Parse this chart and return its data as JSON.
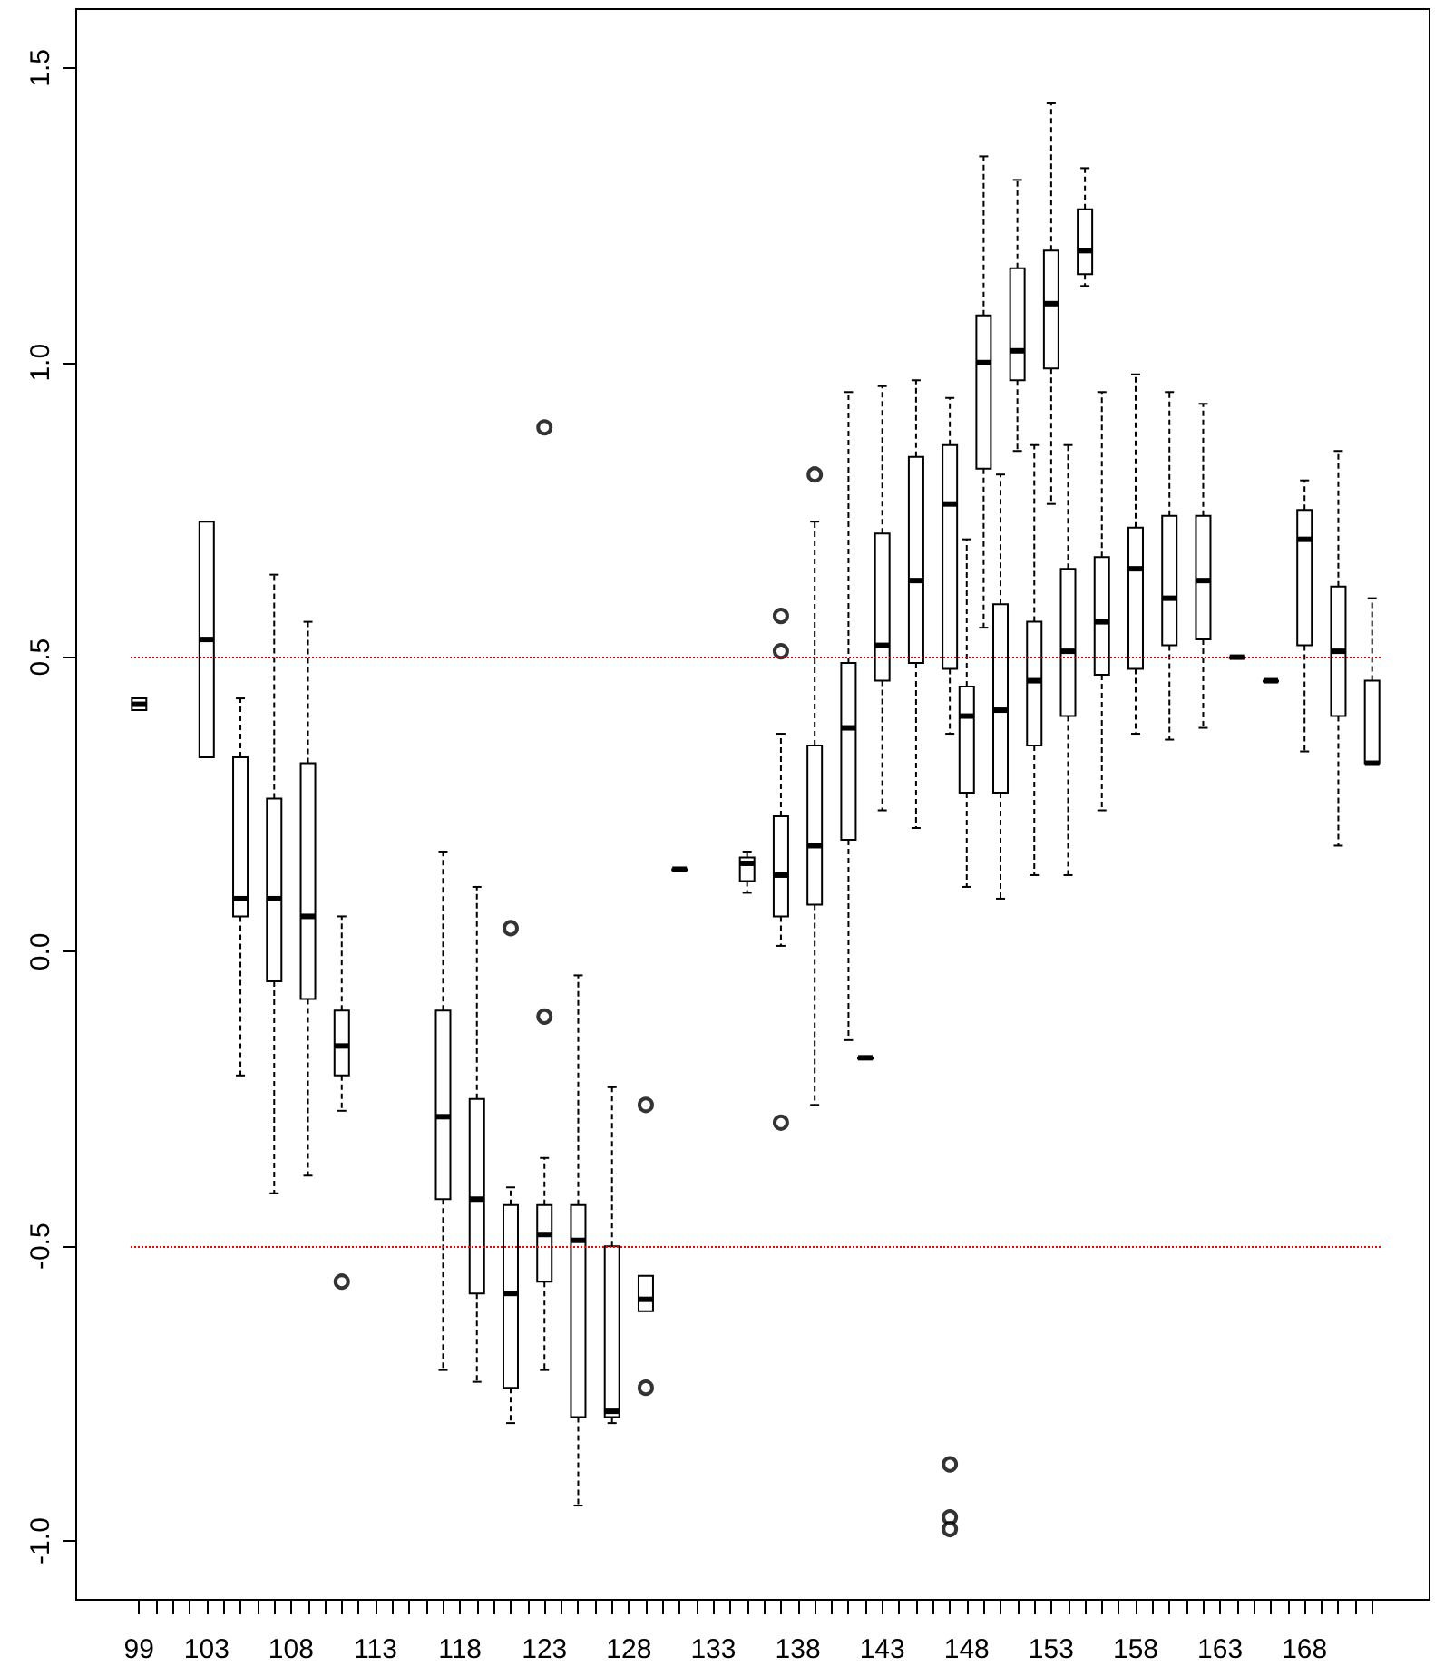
{
  "chart_data": {
    "type": "box",
    "categories": [
      "99",
      null,
      null,
      null,
      "103",
      null,
      null,
      null,
      null,
      "108",
      null,
      null,
      null,
      null,
      "113",
      null,
      null,
      null,
      null,
      "118",
      null,
      null,
      null,
      null,
      "123",
      null,
      null,
      null,
      null,
      "128",
      null,
      null,
      null,
      null,
      "133",
      null,
      null,
      null,
      null,
      "138",
      null,
      null,
      null,
      null,
      "143",
      null,
      null,
      null,
      null,
      "148",
      null,
      null,
      null,
      null,
      "153",
      null,
      null,
      null,
      null,
      "158",
      null,
      null,
      null,
      null,
      "163",
      null,
      null,
      null,
      null,
      "168",
      null,
      null,
      null,
      null
    ],
    "boxes": [
      {
        "low": 0.41,
        "q1": 0.41,
        "median": 0.42,
        "q3": 0.43,
        "high": 0.43
      },
      null,
      null,
      null,
      {
        "low": 0.33,
        "q1": 0.33,
        "median": 0.53,
        "q3": 0.73,
        "high": 0.73
      },
      null,
      {
        "low": -0.21,
        "q1": 0.06,
        "median": 0.09,
        "q3": 0.33,
        "high": 0.43
      },
      null,
      {
        "low": -0.41,
        "q1": -0.05,
        "median": 0.09,
        "q3": 0.26,
        "high": 0.64
      },
      null,
      {
        "low": -0.38,
        "q1": -0.08,
        "median": 0.06,
        "q3": 0.32,
        "high": 0.56
      },
      null,
      {
        "low": -0.27,
        "q1": -0.21,
        "median": -0.16,
        "q3": -0.1,
        "high": 0.06,
        "outliers": [
          -0.56
        ]
      },
      null,
      null,
      null,
      null,
      null,
      {
        "low": -0.71,
        "q1": -0.42,
        "median": -0.28,
        "q3": -0.1,
        "high": 0.17
      },
      null,
      {
        "low": -0.73,
        "q1": -0.58,
        "median": -0.42,
        "q3": -0.25,
        "high": 0.11
      },
      null,
      {
        "low": -0.8,
        "q1": -0.74,
        "median": -0.58,
        "q3": -0.43,
        "high": -0.4,
        "outliers": [
          0.04
        ]
      },
      null,
      {
        "low": -0.71,
        "q1": -0.56,
        "median": -0.48,
        "q3": -0.43,
        "high": -0.35,
        "outliers": [
          -0.11,
          0.89
        ]
      },
      null,
      {
        "low": -0.94,
        "q1": -0.79,
        "median": -0.49,
        "q3": -0.43,
        "high": -0.04
      },
      null,
      {
        "low": -0.8,
        "q1": -0.79,
        "median": -0.78,
        "q3": -0.5,
        "high": -0.23
      },
      null,
      {
        "low": -0.61,
        "q1": -0.61,
        "median": -0.59,
        "q3": -0.55,
        "high": -0.55,
        "outliers": [
          -0.26,
          -0.74
        ]
      },
      null,
      {
        "low": 0.14,
        "q1": 0.14,
        "median": 0.14,
        "q3": 0.14,
        "high": 0.14
      },
      null,
      null,
      null,
      {
        "low": 0.1,
        "q1": 0.12,
        "median": 0.15,
        "q3": 0.16,
        "high": 0.17
      },
      null,
      {
        "low": 0.01,
        "q1": 0.06,
        "median": 0.13,
        "q3": 0.23,
        "high": 0.37,
        "outliers": [
          0.57,
          0.51,
          -0.29
        ]
      },
      null,
      {
        "low": -0.26,
        "q1": 0.08,
        "median": 0.18,
        "q3": 0.35,
        "high": 0.73,
        "outliers": [
          0.81
        ]
      },
      null,
      {
        "low": -0.15,
        "q1": 0.19,
        "median": 0.38,
        "q3": 0.49,
        "high": 0.95
      },
      {
        "low": -0.18,
        "q1": -0.18,
        "median": -0.18,
        "q3": -0.18,
        "high": -0.18
      },
      {
        "low": 0.24,
        "q1": 0.46,
        "median": 0.52,
        "q3": 0.71,
        "high": 0.96
      },
      null,
      {
        "low": 0.21,
        "q1": 0.49,
        "median": 0.63,
        "q3": 0.84,
        "high": 0.97
      },
      null,
      {
        "low": 0.37,
        "q1": 0.48,
        "median": 0.76,
        "q3": 0.86,
        "high": 0.94,
        "outliers": [
          -0.87,
          -0.96,
          -0.98
        ]
      },
      {
        "low": 0.11,
        "q1": 0.27,
        "median": 0.4,
        "q3": 0.45,
        "high": 0.7
      },
      {
        "low": 0.55,
        "q1": 0.82,
        "median": 1.0,
        "q3": 1.08,
        "high": 1.35
      },
      {
        "low": 0.09,
        "q1": 0.27,
        "median": 0.41,
        "q3": 0.59,
        "high": 0.81
      },
      {
        "low": 0.85,
        "q1": 0.97,
        "median": 1.02,
        "q3": 1.16,
        "high": 1.31
      },
      {
        "low": 0.13,
        "q1": 0.35,
        "median": 0.46,
        "q3": 0.56,
        "high": 0.86
      },
      {
        "low": 0.76,
        "q1": 0.99,
        "median": 1.1,
        "q3": 1.19,
        "high": 1.44
      },
      {
        "low": 0.13,
        "q1": 0.4,
        "median": 0.51,
        "q3": 0.65,
        "high": 0.86
      },
      {
        "low": 1.13,
        "q1": 1.15,
        "median": 1.19,
        "q3": 1.26,
        "high": 1.33
      },
      {
        "low": 0.24,
        "q1": 0.47,
        "median": 0.56,
        "q3": 0.67,
        "high": 0.95
      },
      null,
      {
        "low": 0.37,
        "q1": 0.48,
        "median": 0.65,
        "q3": 0.72,
        "high": 0.98
      },
      null,
      {
        "low": 0.36,
        "q1": 0.52,
        "median": 0.6,
        "q3": 0.74,
        "high": 0.95
      },
      null,
      {
        "low": 0.38,
        "q1": 0.53,
        "median": 0.63,
        "q3": 0.74,
        "high": 0.93
      },
      null,
      {
        "low": 0.5,
        "q1": 0.5,
        "median": 0.5,
        "q3": 0.5,
        "high": 0.5
      },
      null,
      {
        "low": 0.46,
        "q1": 0.46,
        "median": 0.46,
        "q3": 0.46,
        "high": 0.46
      },
      null,
      {
        "low": 0.34,
        "q1": 0.52,
        "median": 0.7,
        "q3": 0.75,
        "high": 0.8
      },
      null,
      {
        "low": 0.18,
        "q1": 0.4,
        "median": 0.51,
        "q3": 0.62,
        "high": 0.85
      },
      null,
      {
        "low": 0.32,
        "q1": 0.32,
        "median": 0.32,
        "q3": 0.46,
        "high": 0.6
      }
    ],
    "ylim": [
      -1.1,
      1.6
    ],
    "yticks": [
      {
        "value": -1,
        "label": "-1.0"
      },
      {
        "value": -0.5,
        "label": "-0.5"
      },
      {
        "value": 0,
        "label": "0.0"
      },
      {
        "value": 0.5,
        "label": "0.5"
      },
      {
        "value": 1,
        "label": "1.0"
      },
      {
        "value": 1.5,
        "label": "1.5"
      }
    ],
    "ref_lines": [
      {
        "axis": "y",
        "value": 0.5,
        "color": "#cc0000",
        "line_style": "dotted"
      },
      {
        "axis": "y",
        "value": -0.5,
        "color": "#ff0000",
        "line_style": "dotted"
      }
    ]
  }
}
